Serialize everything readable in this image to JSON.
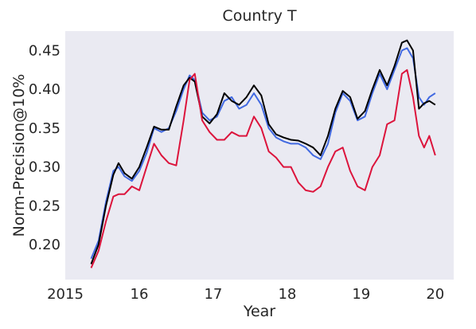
{
  "chart_data": {
    "type": "line",
    "title": "Country T",
    "xlabel": "Year",
    "ylabel": "Norm-Precision@10%",
    "xlim": [
      2015.0,
      2020.25
    ],
    "ylim": [
      0.155,
      0.475
    ],
    "xticks": [
      {
        "value": 2015,
        "label": "2015"
      },
      {
        "value": 2016,
        "label": "16"
      },
      {
        "value": 2017,
        "label": "17"
      },
      {
        "value": 2018,
        "label": "18"
      },
      {
        "value": 2019,
        "label": "19"
      },
      {
        "value": 2020,
        "label": "20"
      }
    ],
    "yticks": [
      {
        "value": 0.2,
        "label": "0.20"
      },
      {
        "value": 0.25,
        "label": "0.25"
      },
      {
        "value": 0.3,
        "label": "0.30"
      },
      {
        "value": 0.35,
        "label": "0.35"
      },
      {
        "value": 0.4,
        "label": "0.40"
      },
      {
        "value": 0.45,
        "label": "0.45"
      }
    ],
    "grid": false,
    "background": "#eaeaf2",
    "series": [
      {
        "color": "#4169e1",
        "x": [
          2015.35,
          2015.45,
          2015.55,
          2015.65,
          2015.72,
          2015.8,
          2015.9,
          2016.0,
          2016.1,
          2016.2,
          2016.3,
          2016.4,
          2016.5,
          2016.6,
          2016.68,
          2016.75,
          2016.85,
          2016.95,
          2017.05,
          2017.15,
          2017.25,
          2017.35,
          2017.45,
          2017.55,
          2017.65,
          2017.75,
          2017.85,
          2017.95,
          2018.05,
          2018.15,
          2018.25,
          2018.35,
          2018.45,
          2018.55,
          2018.65,
          2018.75,
          2018.85,
          2018.95,
          2019.05,
          2019.15,
          2019.25,
          2019.35,
          2019.45,
          2019.55,
          2019.62,
          2019.7,
          2019.78,
          2019.85,
          2019.92,
          2020.0
        ],
        "y": [
          0.182,
          0.205,
          0.255,
          0.295,
          0.3,
          0.288,
          0.282,
          0.295,
          0.318,
          0.35,
          0.345,
          0.35,
          0.372,
          0.4,
          0.418,
          0.412,
          0.37,
          0.36,
          0.365,
          0.385,
          0.39,
          0.375,
          0.38,
          0.395,
          0.38,
          0.35,
          0.338,
          0.333,
          0.33,
          0.33,
          0.325,
          0.315,
          0.31,
          0.33,
          0.37,
          0.395,
          0.385,
          0.36,
          0.365,
          0.395,
          0.42,
          0.4,
          0.425,
          0.45,
          0.453,
          0.44,
          0.39,
          0.38,
          0.39,
          0.395
        ]
      },
      {
        "color": "#000000",
        "x": [
          2015.35,
          2015.45,
          2015.55,
          2015.65,
          2015.72,
          2015.8,
          2015.9,
          2016.0,
          2016.1,
          2016.2,
          2016.3,
          2016.4,
          2016.5,
          2016.6,
          2016.68,
          2016.75,
          2016.85,
          2016.95,
          2017.05,
          2017.15,
          2017.25,
          2017.35,
          2017.45,
          2017.55,
          2017.65,
          2017.75,
          2017.85,
          2017.95,
          2018.05,
          2018.15,
          2018.25,
          2018.35,
          2018.45,
          2018.55,
          2018.65,
          2018.75,
          2018.85,
          2018.95,
          2019.05,
          2019.15,
          2019.25,
          2019.35,
          2019.45,
          2019.55,
          2019.62,
          2019.7,
          2019.78,
          2019.85,
          2019.92,
          2020.0
        ],
        "y": [
          0.175,
          0.2,
          0.25,
          0.29,
          0.305,
          0.292,
          0.285,
          0.3,
          0.325,
          0.352,
          0.348,
          0.348,
          0.378,
          0.405,
          0.415,
          0.41,
          0.365,
          0.356,
          0.368,
          0.395,
          0.385,
          0.38,
          0.39,
          0.405,
          0.392,
          0.355,
          0.342,
          0.338,
          0.335,
          0.334,
          0.33,
          0.325,
          0.315,
          0.34,
          0.375,
          0.398,
          0.39,
          0.362,
          0.372,
          0.4,
          0.425,
          0.405,
          0.43,
          0.46,
          0.463,
          0.45,
          0.375,
          0.382,
          0.385,
          0.38
        ]
      },
      {
        "color": "#dc143c",
        "x": [
          2015.35,
          2015.45,
          2015.55,
          2015.65,
          2015.72,
          2015.8,
          2015.9,
          2016.0,
          2016.1,
          2016.2,
          2016.3,
          2016.4,
          2016.5,
          2016.6,
          2016.68,
          2016.75,
          2016.85,
          2016.95,
          2017.05,
          2017.15,
          2017.25,
          2017.35,
          2017.45,
          2017.55,
          2017.65,
          2017.75,
          2017.85,
          2017.95,
          2018.05,
          2018.15,
          2018.25,
          2018.35,
          2018.45,
          2018.55,
          2018.65,
          2018.75,
          2018.85,
          2018.95,
          2019.05,
          2019.15,
          2019.25,
          2019.35,
          2019.45,
          2019.55,
          2019.62,
          2019.7,
          2019.78,
          2019.85,
          2019.92,
          2020.0
        ],
        "y": [
          0.17,
          0.192,
          0.23,
          0.262,
          0.265,
          0.265,
          0.275,
          0.27,
          0.3,
          0.33,
          0.315,
          0.305,
          0.302,
          0.36,
          0.412,
          0.42,
          0.36,
          0.345,
          0.335,
          0.335,
          0.345,
          0.34,
          0.34,
          0.365,
          0.35,
          0.32,
          0.312,
          0.3,
          0.3,
          0.28,
          0.27,
          0.268,
          0.275,
          0.3,
          0.32,
          0.325,
          0.295,
          0.275,
          0.27,
          0.3,
          0.315,
          0.355,
          0.36,
          0.42,
          0.425,
          0.39,
          0.34,
          0.325,
          0.34,
          0.315
        ]
      }
    ]
  }
}
